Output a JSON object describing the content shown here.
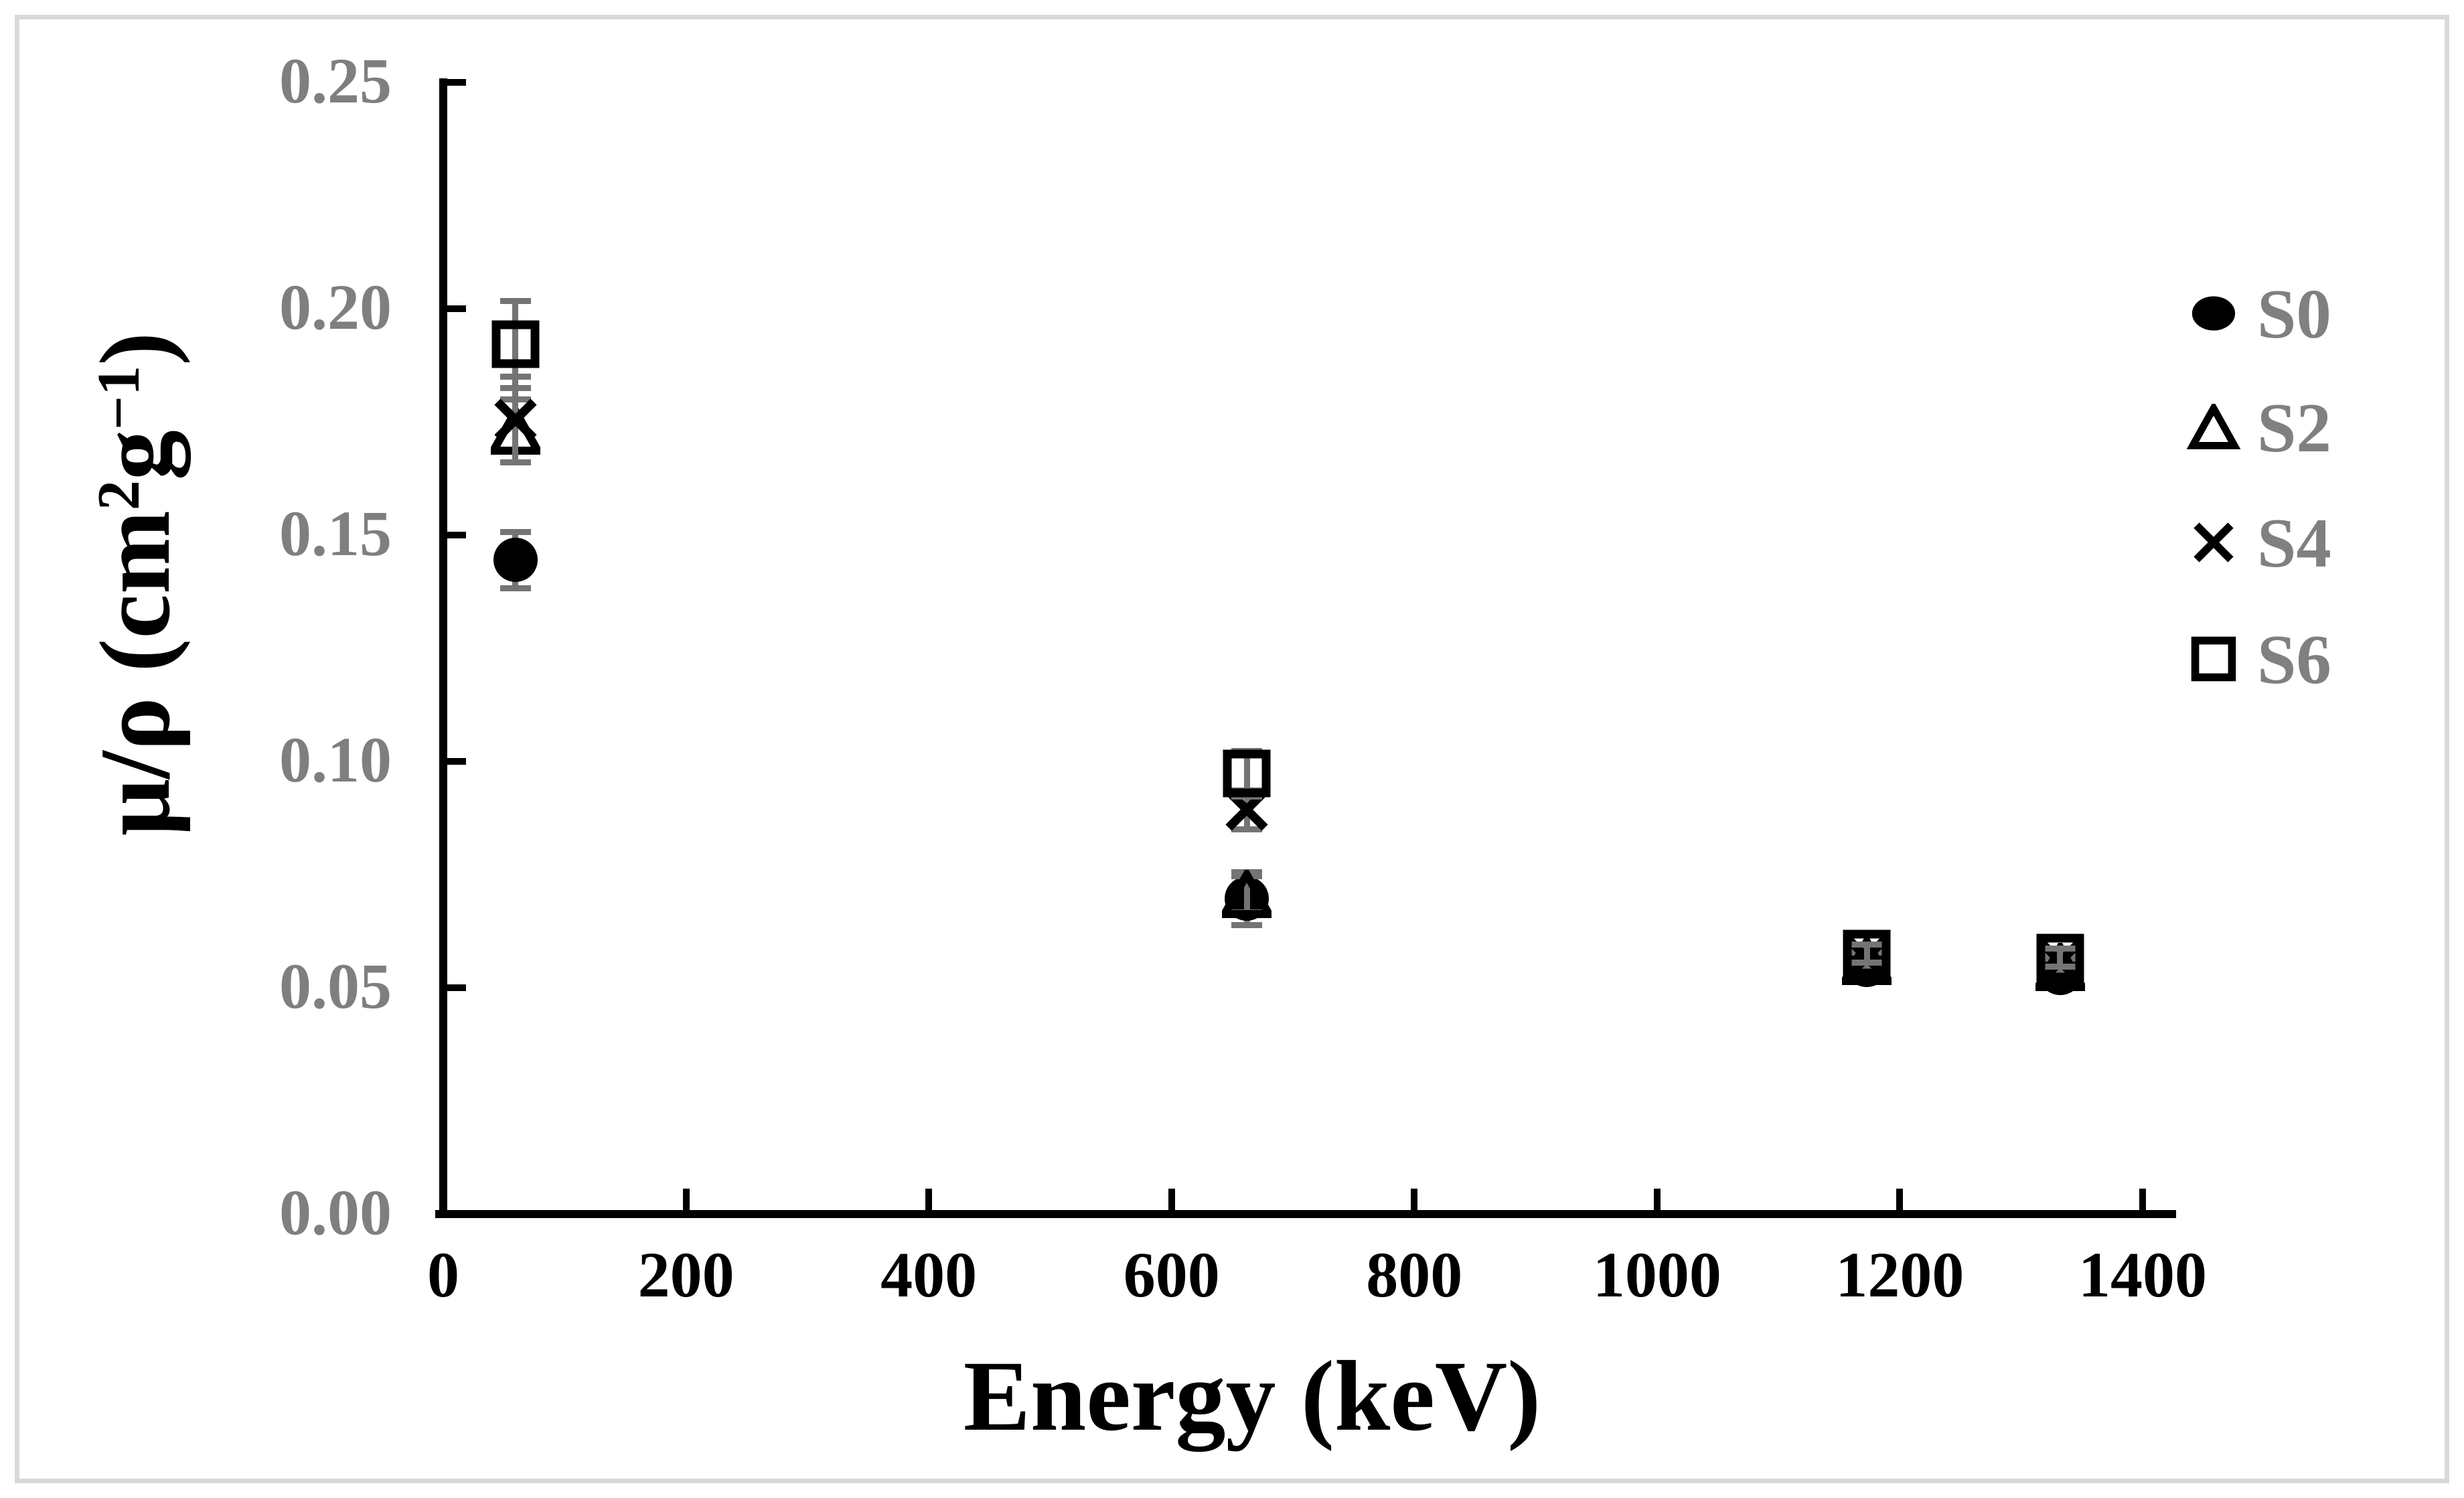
{
  "colors": {
    "marker": "#000000",
    "error_bar": "#747474",
    "axis": "#000000",
    "y_tick_label": "#7f7f7f",
    "x_tick_label": "#000000",
    "axis_title": "#000000",
    "legend_text": "#808080",
    "figure_border": "#d9d9d9",
    "background": "#ffffff"
  },
  "chart_data": {
    "type": "scatter",
    "title": "",
    "xlabel": "Energy (keV)",
    "ylabel": "μ/ρ (cm²g⁻¹)",
    "ylabel_parts": [
      {
        "t": "μ/ρ (cm",
        "sup": false
      },
      {
        "t": "2",
        "sup": true
      },
      {
        "t": "g",
        "sup": false
      },
      {
        "t": "−1",
        "sup": true
      },
      {
        "t": ")",
        "sup": false
      }
    ],
    "xlim": [
      0,
      1400
    ],
    "ylim": [
      0.0,
      0.25
    ],
    "grid": false,
    "legend_position": "right",
    "x_ticks": [
      {
        "value": 0,
        "label": "0"
      },
      {
        "value": 200,
        "label": "200"
      },
      {
        "value": 400,
        "label": "400"
      },
      {
        "value": 600,
        "label": "600"
      },
      {
        "value": 800,
        "label": "800"
      },
      {
        "value": 1000,
        "label": "1000"
      },
      {
        "value": 1200,
        "label": "1200"
      },
      {
        "value": 1400,
        "label": "1400"
      }
    ],
    "y_ticks": [
      {
        "value": 0.0,
        "label": "0.00"
      },
      {
        "value": 0.05,
        "label": "0.05"
      },
      {
        "value": 0.1,
        "label": "0.10"
      },
      {
        "value": 0.15,
        "label": "0.15"
      },
      {
        "value": 0.2,
        "label": "0.20"
      },
      {
        "value": 0.25,
        "label": "0.25"
      }
    ],
    "series": [
      {
        "name": "S0",
        "marker": "filled-circle",
        "points": [
          {
            "x": 59.5,
            "y": 0.1445,
            "err": 0.0062
          },
          {
            "x": 662,
            "y": 0.0697,
            "err": 0.0058
          },
          {
            "x": 1173,
            "y": 0.055,
            "err": 0.002
          },
          {
            "x": 1332,
            "y": 0.0532,
            "err": 0.002
          }
        ]
      },
      {
        "name": "S2",
        "marker": "open-triangle",
        "points": [
          {
            "x": 59.5,
            "y": 0.173,
            "err": 0.007
          },
          {
            "x": 662,
            "y": 0.0706,
            "err": 0.004
          },
          {
            "x": 1173,
            "y": 0.0558,
            "err": 0.002
          },
          {
            "x": 1332,
            "y": 0.0545,
            "err": 0.002
          }
        ]
      },
      {
        "name": "S4",
        "marker": "x-cross",
        "points": [
          {
            "x": 59.5,
            "y": 0.1755,
            "err": 0.0095
          },
          {
            "x": 662,
            "y": 0.0893,
            "err": 0.0043
          },
          {
            "x": 1173,
            "y": 0.0567,
            "err": 0.002
          },
          {
            "x": 1332,
            "y": 0.0557,
            "err": 0.002
          }
        ]
      },
      {
        "name": "S6",
        "marker": "open-square",
        "points": [
          {
            "x": 59.5,
            "y": 0.1921,
            "err": 0.0096
          },
          {
            "x": 662,
            "y": 0.0973,
            "err": 0.005
          },
          {
            "x": 1173,
            "y": 0.0576,
            "err": 0.002
          },
          {
            "x": 1332,
            "y": 0.0566,
            "err": 0.002
          }
        ]
      }
    ]
  }
}
